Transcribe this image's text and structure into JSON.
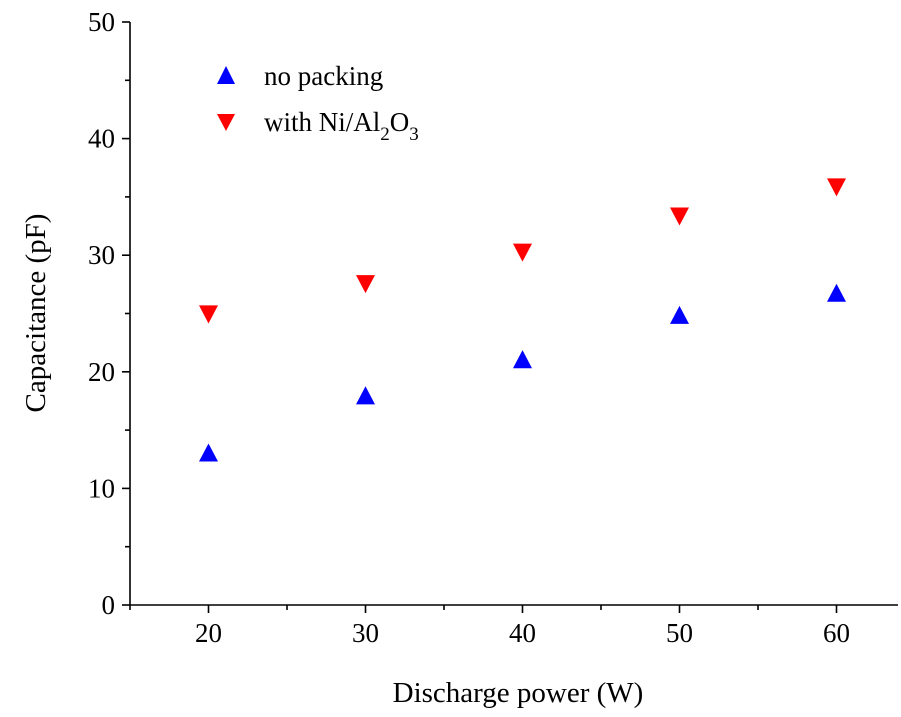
{
  "chart_data": {
    "type": "scatter",
    "title": "",
    "xlabel": "Discharge power (W)",
    "ylabel": "Capacitance (pF)",
    "xlim": [
      15,
      65
    ],
    "ylim": [
      0,
      50
    ],
    "xticks": [
      20,
      30,
      40,
      50,
      60
    ],
    "xtick_labels": [
      "20",
      "30",
      "40",
      "50",
      "60"
    ],
    "yticks": [
      0,
      10,
      20,
      30,
      40,
      50
    ],
    "ytick_labels": [
      "0",
      "10",
      "20",
      "30",
      "40",
      "50"
    ],
    "grid": false,
    "legend_position": "top-left",
    "series": [
      {
        "name": "no packing",
        "marker": "triangle-up",
        "color": "#0000ff",
        "x": [
          20,
          30,
          40,
          50,
          60
        ],
        "y": [
          13.0,
          17.9,
          21.0,
          24.8,
          26.7
        ]
      },
      {
        "name_parts": [
          "with Ni/Al",
          "2",
          "O",
          "3"
        ],
        "marker": "triangle-down",
        "color": "#ff0000",
        "x": [
          20,
          30,
          40,
          50,
          60
        ],
        "y": [
          25.0,
          27.6,
          30.3,
          33.4,
          35.9
        ]
      }
    ]
  }
}
